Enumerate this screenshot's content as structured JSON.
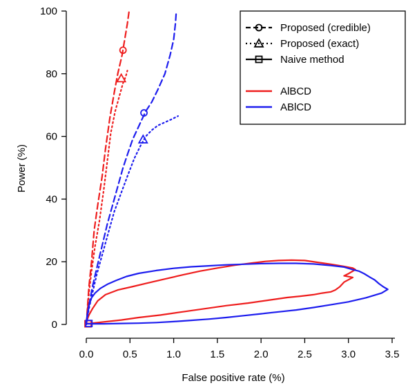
{
  "chart_data": {
    "type": "line",
    "xlabel": "False positive rate (%)",
    "ylabel": "Power (%)",
    "xlim": [
      0,
      3.5
    ],
    "ylim": [
      0,
      100
    ],
    "xticks": [
      "0.0",
      "0.5",
      "1.0",
      "1.5",
      "2.0",
      "2.5",
      "3.0",
      "3.5"
    ],
    "yticks": [
      "0",
      "20",
      "40",
      "60",
      "80",
      "100"
    ],
    "colors": {
      "A|BCD": "#ee1c1c",
      "AB|CD": "#1c1cee"
    },
    "legend": {
      "placement": "top-right",
      "methods": [
        {
          "label": "Proposed (credible)",
          "line": "dashed",
          "marker": "circle"
        },
        {
          "label": "Proposed (exact)",
          "line": "dotted",
          "marker": "triangle"
        },
        {
          "label": "Naive method",
          "line": "solid",
          "marker": "square"
        }
      ],
      "partitions": [
        {
          "label": "AlBCD",
          "color": "#ee1c1c"
        },
        {
          "label": "ABlCD",
          "color": "#1c1cee"
        }
      ]
    },
    "series": [
      {
        "method": "Proposed (credible)",
        "partition": "A|BCD",
        "color": "#ee1c1c",
        "line": "dashed",
        "x": [
          0.0,
          0.03,
          0.06,
          0.09,
          0.13,
          0.18,
          0.22,
          0.27,
          0.32,
          0.36,
          0.41,
          0.44,
          0.47,
          0.49
        ],
        "y": [
          0,
          12,
          20,
          30,
          38,
          47,
          56,
          66,
          74,
          80,
          86,
          91,
          96,
          100
        ],
        "marker": {
          "x": 0.42,
          "y": 87.5
        }
      },
      {
        "method": "Proposed (exact)",
        "partition": "A|BCD",
        "color": "#ee1c1c",
        "line": "dotted",
        "x": [
          0.0,
          0.03,
          0.06,
          0.1,
          0.15,
          0.2,
          0.24,
          0.28,
          0.33,
          0.38,
          0.42,
          0.45,
          0.47
        ],
        "y": [
          0,
          10,
          17,
          25,
          33,
          43,
          52,
          61,
          68,
          73,
          77,
          79,
          81
        ],
        "marker": {
          "x": 0.4,
          "y": 78.5
        }
      },
      {
        "method": "Naive method",
        "partition": "A|BCD",
        "color": "#ee1c1c",
        "line": "solid",
        "x": [
          0.0,
          0.01,
          0.03,
          0.07,
          0.13,
          0.22,
          0.36,
          0.52,
          0.7,
          0.9,
          1.1,
          1.3,
          1.5,
          1.7,
          1.9,
          2.05,
          2.2,
          2.35,
          2.5,
          2.65,
          2.8,
          2.95,
          3.05,
          3.08,
          3.0,
          2.95,
          3.05,
          2.95,
          2.9,
          2.85,
          2.8,
          2.7,
          2.6,
          2.45,
          2.3,
          2.1,
          1.85,
          1.6,
          1.35,
          1.1,
          0.85,
          0.6,
          0.4,
          0.2,
          0.1,
          0.05,
          0.0
        ],
        "y": [
          0.5,
          1.5,
          3,
          5,
          7.5,
          9.5,
          11,
          12,
          13.2,
          14.5,
          15.8,
          17,
          18,
          18.9,
          19.6,
          20.1,
          20.4,
          20.5,
          20.4,
          19.8,
          19.2,
          18.5,
          18,
          17.5,
          16.2,
          15.5,
          15,
          13.5,
          12,
          11,
          10.4,
          10,
          9.5,
          9,
          8.6,
          7.8,
          6.8,
          6,
          5,
          4,
          3,
          2.2,
          1.4,
          0.8,
          0.5,
          0.3,
          0.3
        ],
        "marker": {
          "x": 0.02,
          "y": 0.2
        }
      },
      {
        "method": "Proposed (credible)",
        "partition": "AB|CD",
        "color": "#1c1cee",
        "line": "dashed",
        "x": [
          0.0,
          0.03,
          0.07,
          0.12,
          0.18,
          0.24,
          0.3,
          0.36,
          0.42,
          0.48,
          0.53,
          0.58,
          0.63,
          0.68,
          0.75,
          0.82,
          0.9,
          0.96,
          1.0,
          1.02,
          1.03
        ],
        "y": [
          0,
          6,
          12,
          18,
          25,
          32,
          38,
          44,
          50,
          55,
          59,
          62,
          65,
          68,
          71,
          75,
          80,
          86,
          91,
          96,
          100
        ],
        "marker": {
          "x": 0.66,
          "y": 67.5
        }
      },
      {
        "method": "Proposed (exact)",
        "partition": "AB|CD",
        "color": "#1c1cee",
        "line": "dotted",
        "x": [
          0.0,
          0.03,
          0.07,
          0.12,
          0.18,
          0.25,
          0.32,
          0.4,
          0.48,
          0.55,
          0.62,
          0.68,
          0.75,
          0.82,
          0.9,
          0.98,
          1.05
        ],
        "y": [
          0,
          5,
          10,
          16,
          22,
          29,
          36,
          42,
          48,
          53,
          57,
          60,
          62,
          63.5,
          64.5,
          65.5,
          66.5
        ],
        "marker": {
          "x": 0.65,
          "y": 59
        }
      },
      {
        "method": "Naive method",
        "partition": "AB|CD",
        "color": "#1c1cee",
        "line": "solid",
        "x": [
          0.0,
          0.01,
          0.03,
          0.06,
          0.1,
          0.16,
          0.24,
          0.34,
          0.46,
          0.6,
          0.8,
          1.0,
          1.2,
          1.4,
          1.6,
          1.8,
          2.0,
          2.2,
          2.4,
          2.6,
          2.8,
          2.95,
          3.05,
          3.12,
          3.18,
          3.25,
          3.3,
          3.35,
          3.4,
          3.45,
          3.38,
          3.2,
          3.0,
          2.8,
          2.6,
          2.4,
          2.2,
          2.0,
          1.8,
          1.6,
          1.4,
          1.2,
          1.0,
          0.8,
          0.6,
          0.4,
          0.2,
          0.1,
          0.05,
          0.0
        ],
        "y": [
          0.3,
          3,
          6,
          8.5,
          10,
          11.5,
          12.8,
          14,
          15.3,
          16.3,
          17.2,
          17.9,
          18.4,
          18.7,
          19,
          19.2,
          19.4,
          19.5,
          19.5,
          19.3,
          18.8,
          18.3,
          17.5,
          17,
          16.2,
          15,
          14.2,
          13,
          12,
          11.2,
          10,
          8.5,
          7.2,
          6.3,
          5.4,
          4.6,
          4,
          3.4,
          2.8,
          2.2,
          1.7,
          1.3,
          0.9,
          0.6,
          0.4,
          0.3,
          0.2,
          0.2,
          0.2,
          0.2
        ],
        "marker": {
          "x": 0.03,
          "y": 0.3
        }
      }
    ]
  }
}
